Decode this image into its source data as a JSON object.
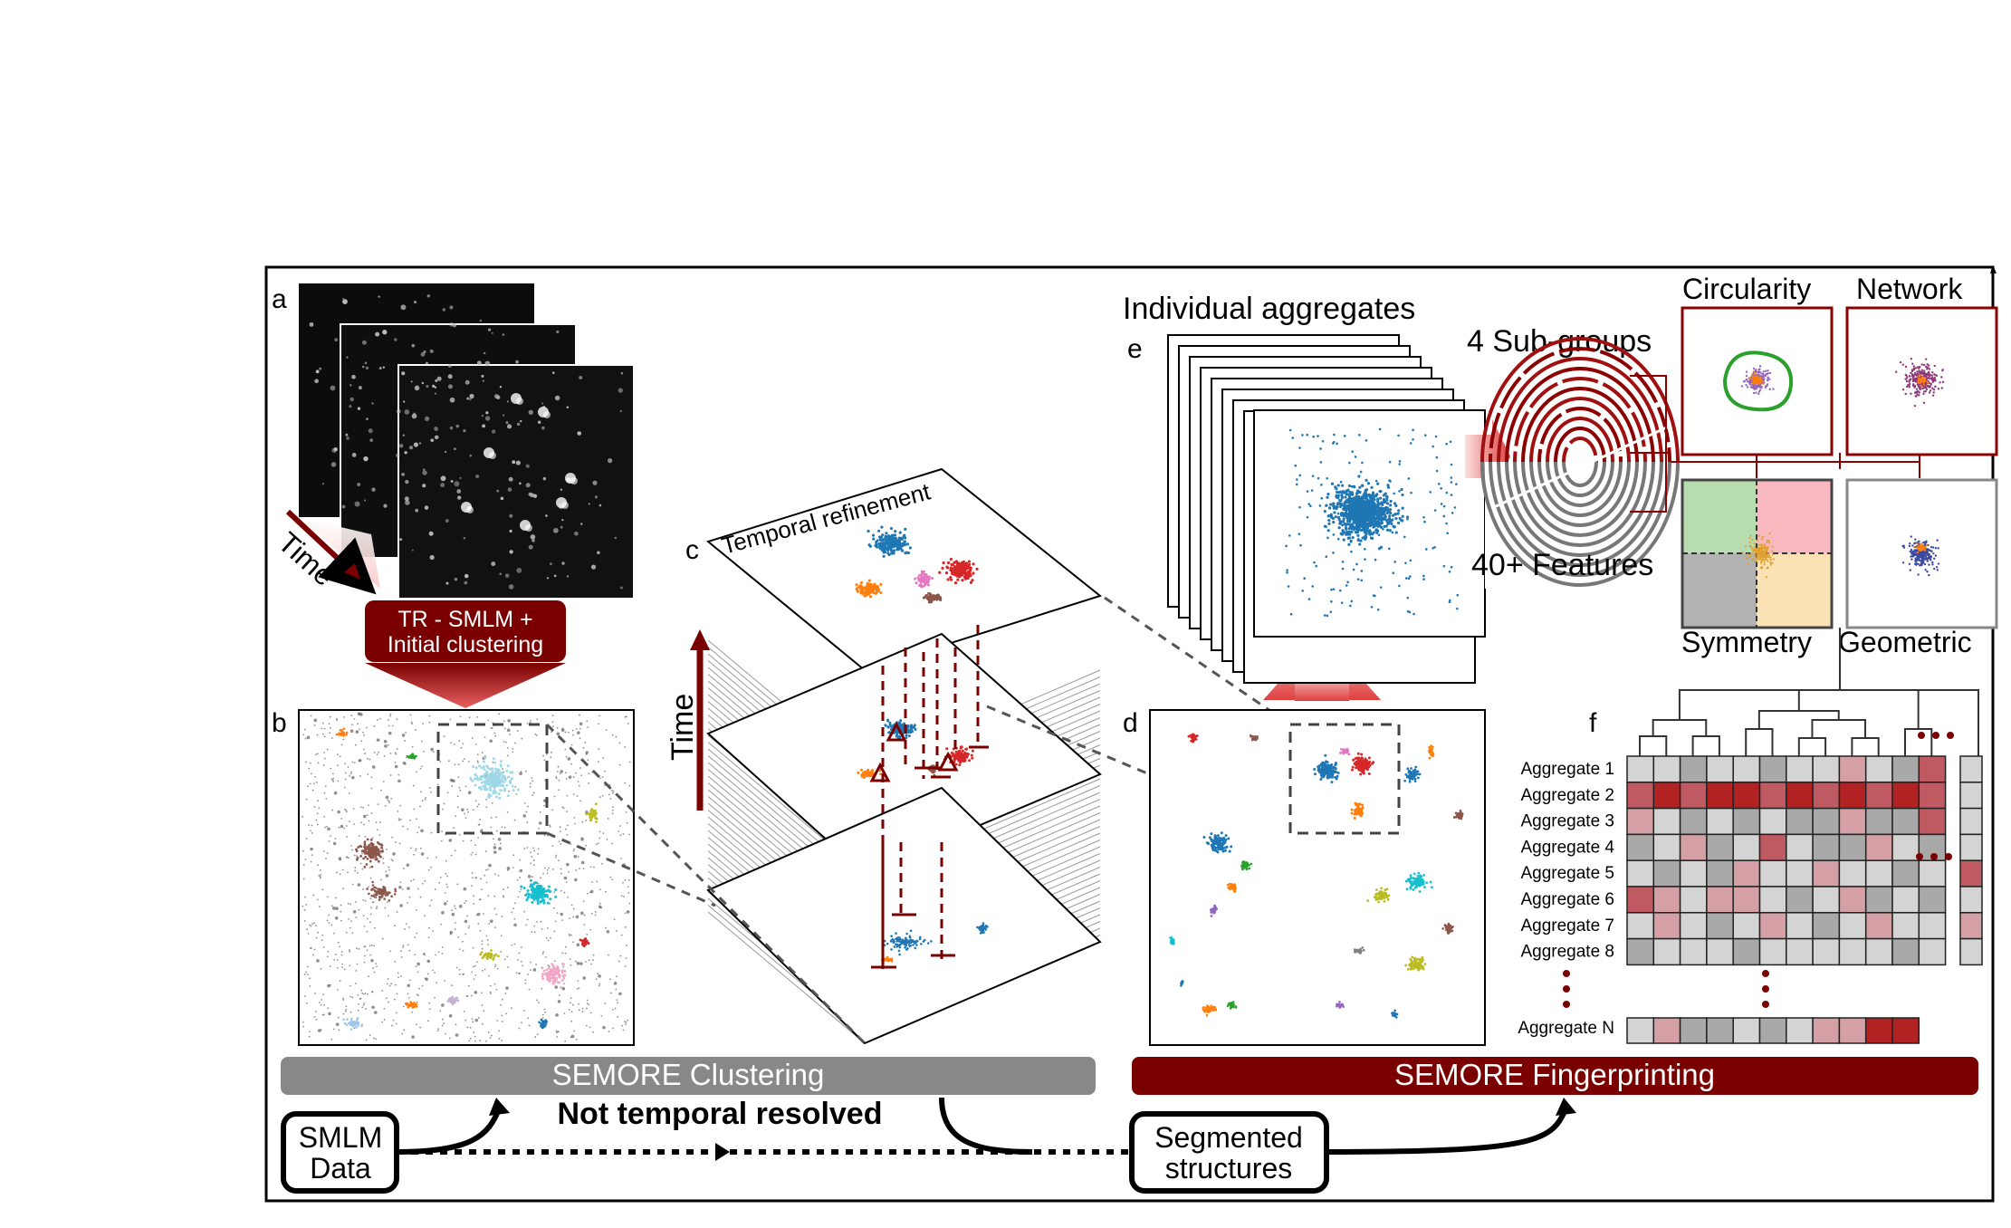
{
  "panels": {
    "a": "a",
    "b": "b",
    "c": "c",
    "d": "d",
    "e": "e",
    "f": "f"
  },
  "labels": {
    "time_a": "Time",
    "tr_smlm_line1": "TR - SMLM +",
    "tr_smlm_line2": "Initial clustering",
    "temporal_refinement": "Temporal refinement",
    "time_c": "Time",
    "individual_aggregates": "Individual aggregates",
    "sub_groups": "4 Sub-groups",
    "features": "40+ Features",
    "circularity": "Circularity",
    "network": "Network",
    "symmetry": "Symmetry",
    "geometric": "Geometric"
  },
  "bars": {
    "clustering": "SEMORE Clustering",
    "fingerprinting": "SEMORE Fingerprinting"
  },
  "flow": {
    "smlm_line1": "SMLM",
    "smlm_line2": "Data",
    "not_temporal": "Not temporal resolved",
    "segmented_line1": "Segmented",
    "segmented_line2": "structures"
  },
  "heatmap": {
    "rows": [
      "Aggregate 1",
      "Aggregate 2",
      "Aggregate 3",
      "Aggregate 4",
      "Aggregate 5",
      "Aggregate 6",
      "Aggregate 7",
      "Aggregate 8"
    ],
    "last_row": "Aggregate N",
    "cells": [
      [
        1,
        1,
        2,
        1,
        1,
        2,
        1,
        1,
        3,
        1,
        2,
        4
      ],
      [
        4,
        5,
        4,
        5,
        5,
        4,
        5,
        4,
        5,
        4,
        5,
        4
      ],
      [
        3,
        1,
        2,
        1,
        2,
        1,
        2,
        2,
        3,
        2,
        2,
        4
      ],
      [
        2,
        1,
        3,
        2,
        1,
        4,
        1,
        2,
        2,
        3,
        1,
        2
      ],
      [
        1,
        2,
        1,
        2,
        3,
        1,
        1,
        3,
        1,
        1,
        2,
        1
      ],
      [
        4,
        3,
        1,
        3,
        3,
        1,
        2,
        1,
        3,
        2,
        1,
        2
      ],
      [
        1,
        3,
        1,
        2,
        1,
        3,
        1,
        2,
        1,
        3,
        1,
        1
      ],
      [
        2,
        1,
        1,
        1,
        2,
        1,
        1,
        1,
        1,
        1,
        2,
        1
      ]
    ],
    "last_cells": [
      1,
      3,
      2,
      2,
      1,
      2,
      1,
      3,
      3,
      5,
      5
    ],
    "side_cells": [
      1,
      1,
      1,
      1,
      4,
      1,
      3,
      1
    ]
  },
  "colors": {
    "dark_red": "#7a0000",
    "gray_bar": "#888888",
    "blue": "#1f77b4",
    "orange": "#ff7f0e",
    "red": "#d62728",
    "cyan": "#17becf",
    "olive": "#bcbd22",
    "brown": "#8c564b",
    "pink": "#e377c2",
    "purple": "#9467bd",
    "green": "#2ca02c"
  }
}
